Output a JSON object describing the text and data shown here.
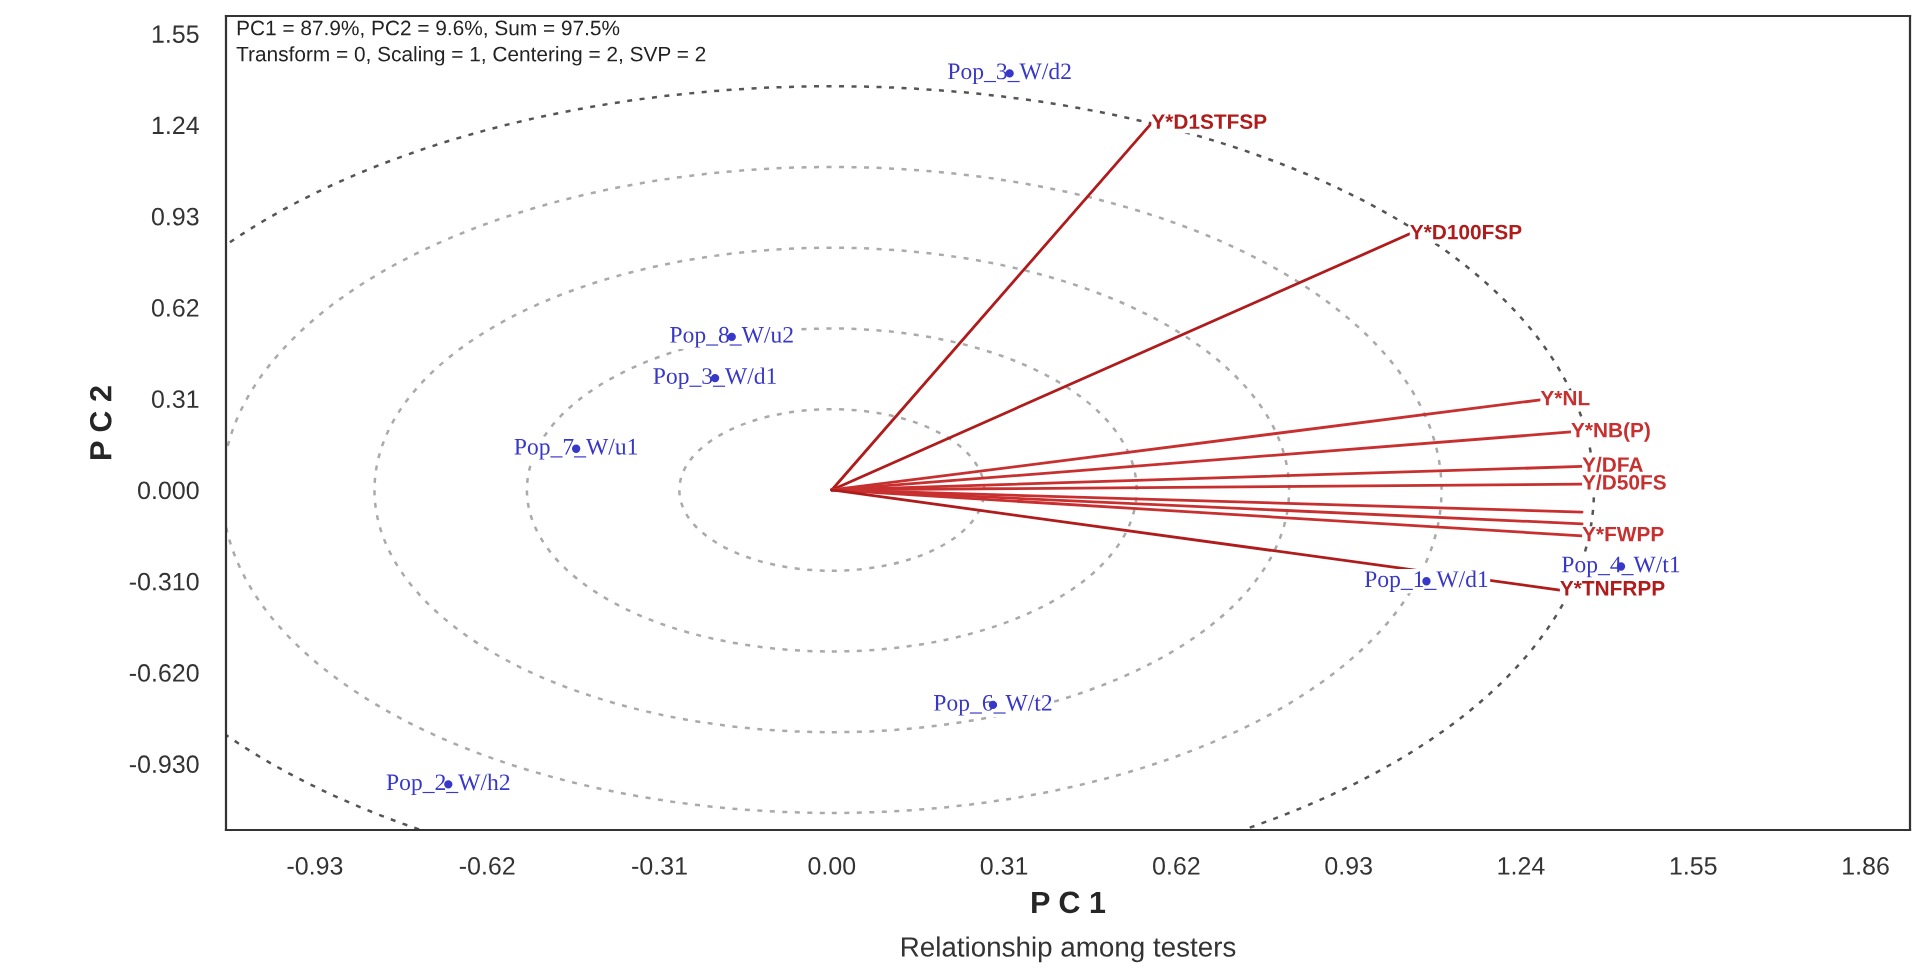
{
  "chart_data": {
    "type": "line",
    "xlabel": "P C 1",
    "ylabel": "P C 2",
    "xlim": [
      -1.09,
      1.94
    ],
    "ylim": [
      -1.155,
      1.61
    ],
    "xticks": [
      -0.93,
      -0.62,
      -0.31,
      {
        "value": 0,
        "label": "0.00"
      },
      0.31,
      0.62,
      0.93,
      1.24,
      1.55,
      1.86
    ],
    "yticks": [
      {
        "value": -0.93,
        "label": "-0.930"
      },
      {
        "value": -0.62,
        "label": "-0.620"
      },
      {
        "value": -0.31,
        "label": "-0.310"
      },
      {
        "value": 0,
        "label": "0.000"
      },
      0.31,
      0.62,
      0.93,
      1.24,
      1.55
    ],
    "grid": false,
    "legend": false,
    "marker": "none",
    "line_style": "solid",
    "series": [
      {
        "name": "Y*D1STFSP",
        "color": "#b01c1c",
        "x": [
          0,
          0.575
        ],
        "values": [
          0,
          1.245
        ]
      },
      {
        "name": "Y*D100FSP",
        "color": "#b01c1c",
        "x": [
          0,
          1.04
        ],
        "values": [
          0,
          0.87
        ]
      },
      {
        "name": "Y*NL",
        "color": "#c83030",
        "x": [
          0,
          1.275
        ],
        "values": [
          0,
          0.306
        ]
      },
      {
        "name": "Y*NB(P)",
        "color": "#c83030",
        "x": [
          0,
          1.33
        ],
        "values": [
          0,
          0.197
        ]
      },
      {
        "name": "Y/DFA",
        "color": "#c83030",
        "x": [
          0,
          1.35
        ],
        "values": [
          0,
          0.08
        ]
      },
      {
        "name": "Y/D50FS",
        "color": "#c83030",
        "x": [
          0,
          1.35
        ],
        "values": [
          0,
          0.02
        ]
      },
      {
        "name": null,
        "color": "#c83030",
        "x": [
          0,
          1.35
        ],
        "values": [
          0,
          -0.075
        ]
      },
      {
        "name": null,
        "color": "#c83030",
        "x": [
          0,
          1.35
        ],
        "values": [
          0,
          -0.115
        ]
      },
      {
        "name": "Y*FWPP",
        "color": "#c83030",
        "x": [
          0,
          1.35
        ],
        "values": [
          0,
          -0.156
        ]
      },
      {
        "name": "Y*TNFRPP",
        "color": "#b01c1c",
        "x": [
          0,
          1.31
        ],
        "values": [
          0,
          -0.34
        ]
      },
      {
        "type": "scatter",
        "color": "#3838c8",
        "x": [
          0.32,
          -0.18,
          -0.21,
          -0.46,
          0.29,
          -0.69,
          1.07,
          1.42
        ],
        "values": [
          1.415,
          0.52,
          0.38,
          0.14,
          -0.73,
          -1.0,
          -0.31,
          -0.26
        ]
      }
    ],
    "annotations": [
      "PC1 = 87.9%, PC2 = 9.6%, Sum = 97.5%",
      "Transform = 0, Scaling = 1, Centering = 2, SVP = 2",
      "Relationship among testers",
      {
        "text": "Pop_3_W/d2",
        "x": 0.32,
        "y": 1.415
      },
      {
        "text": "Pop_8_W/u2",
        "x": -0.18,
        "y": 0.52
      },
      {
        "text": "Pop_3_W/d1",
        "x": -0.21,
        "y": 0.38
      },
      {
        "text": "Pop_7_W/u1",
        "x": -0.46,
        "y": 0.14
      },
      {
        "text": "Pop_6_W/t2",
        "x": 0.29,
        "y": -0.73
      },
      {
        "text": "Pop_2_W/h2",
        "x": -0.69,
        "y": -1.0
      },
      {
        "text": "Pop_1_W/d1",
        "x": 1.07,
        "y": -0.31
      },
      {
        "text": "Pop_4_W/t1",
        "x": 1.42,
        "y": -0.26
      }
    ]
  }
}
